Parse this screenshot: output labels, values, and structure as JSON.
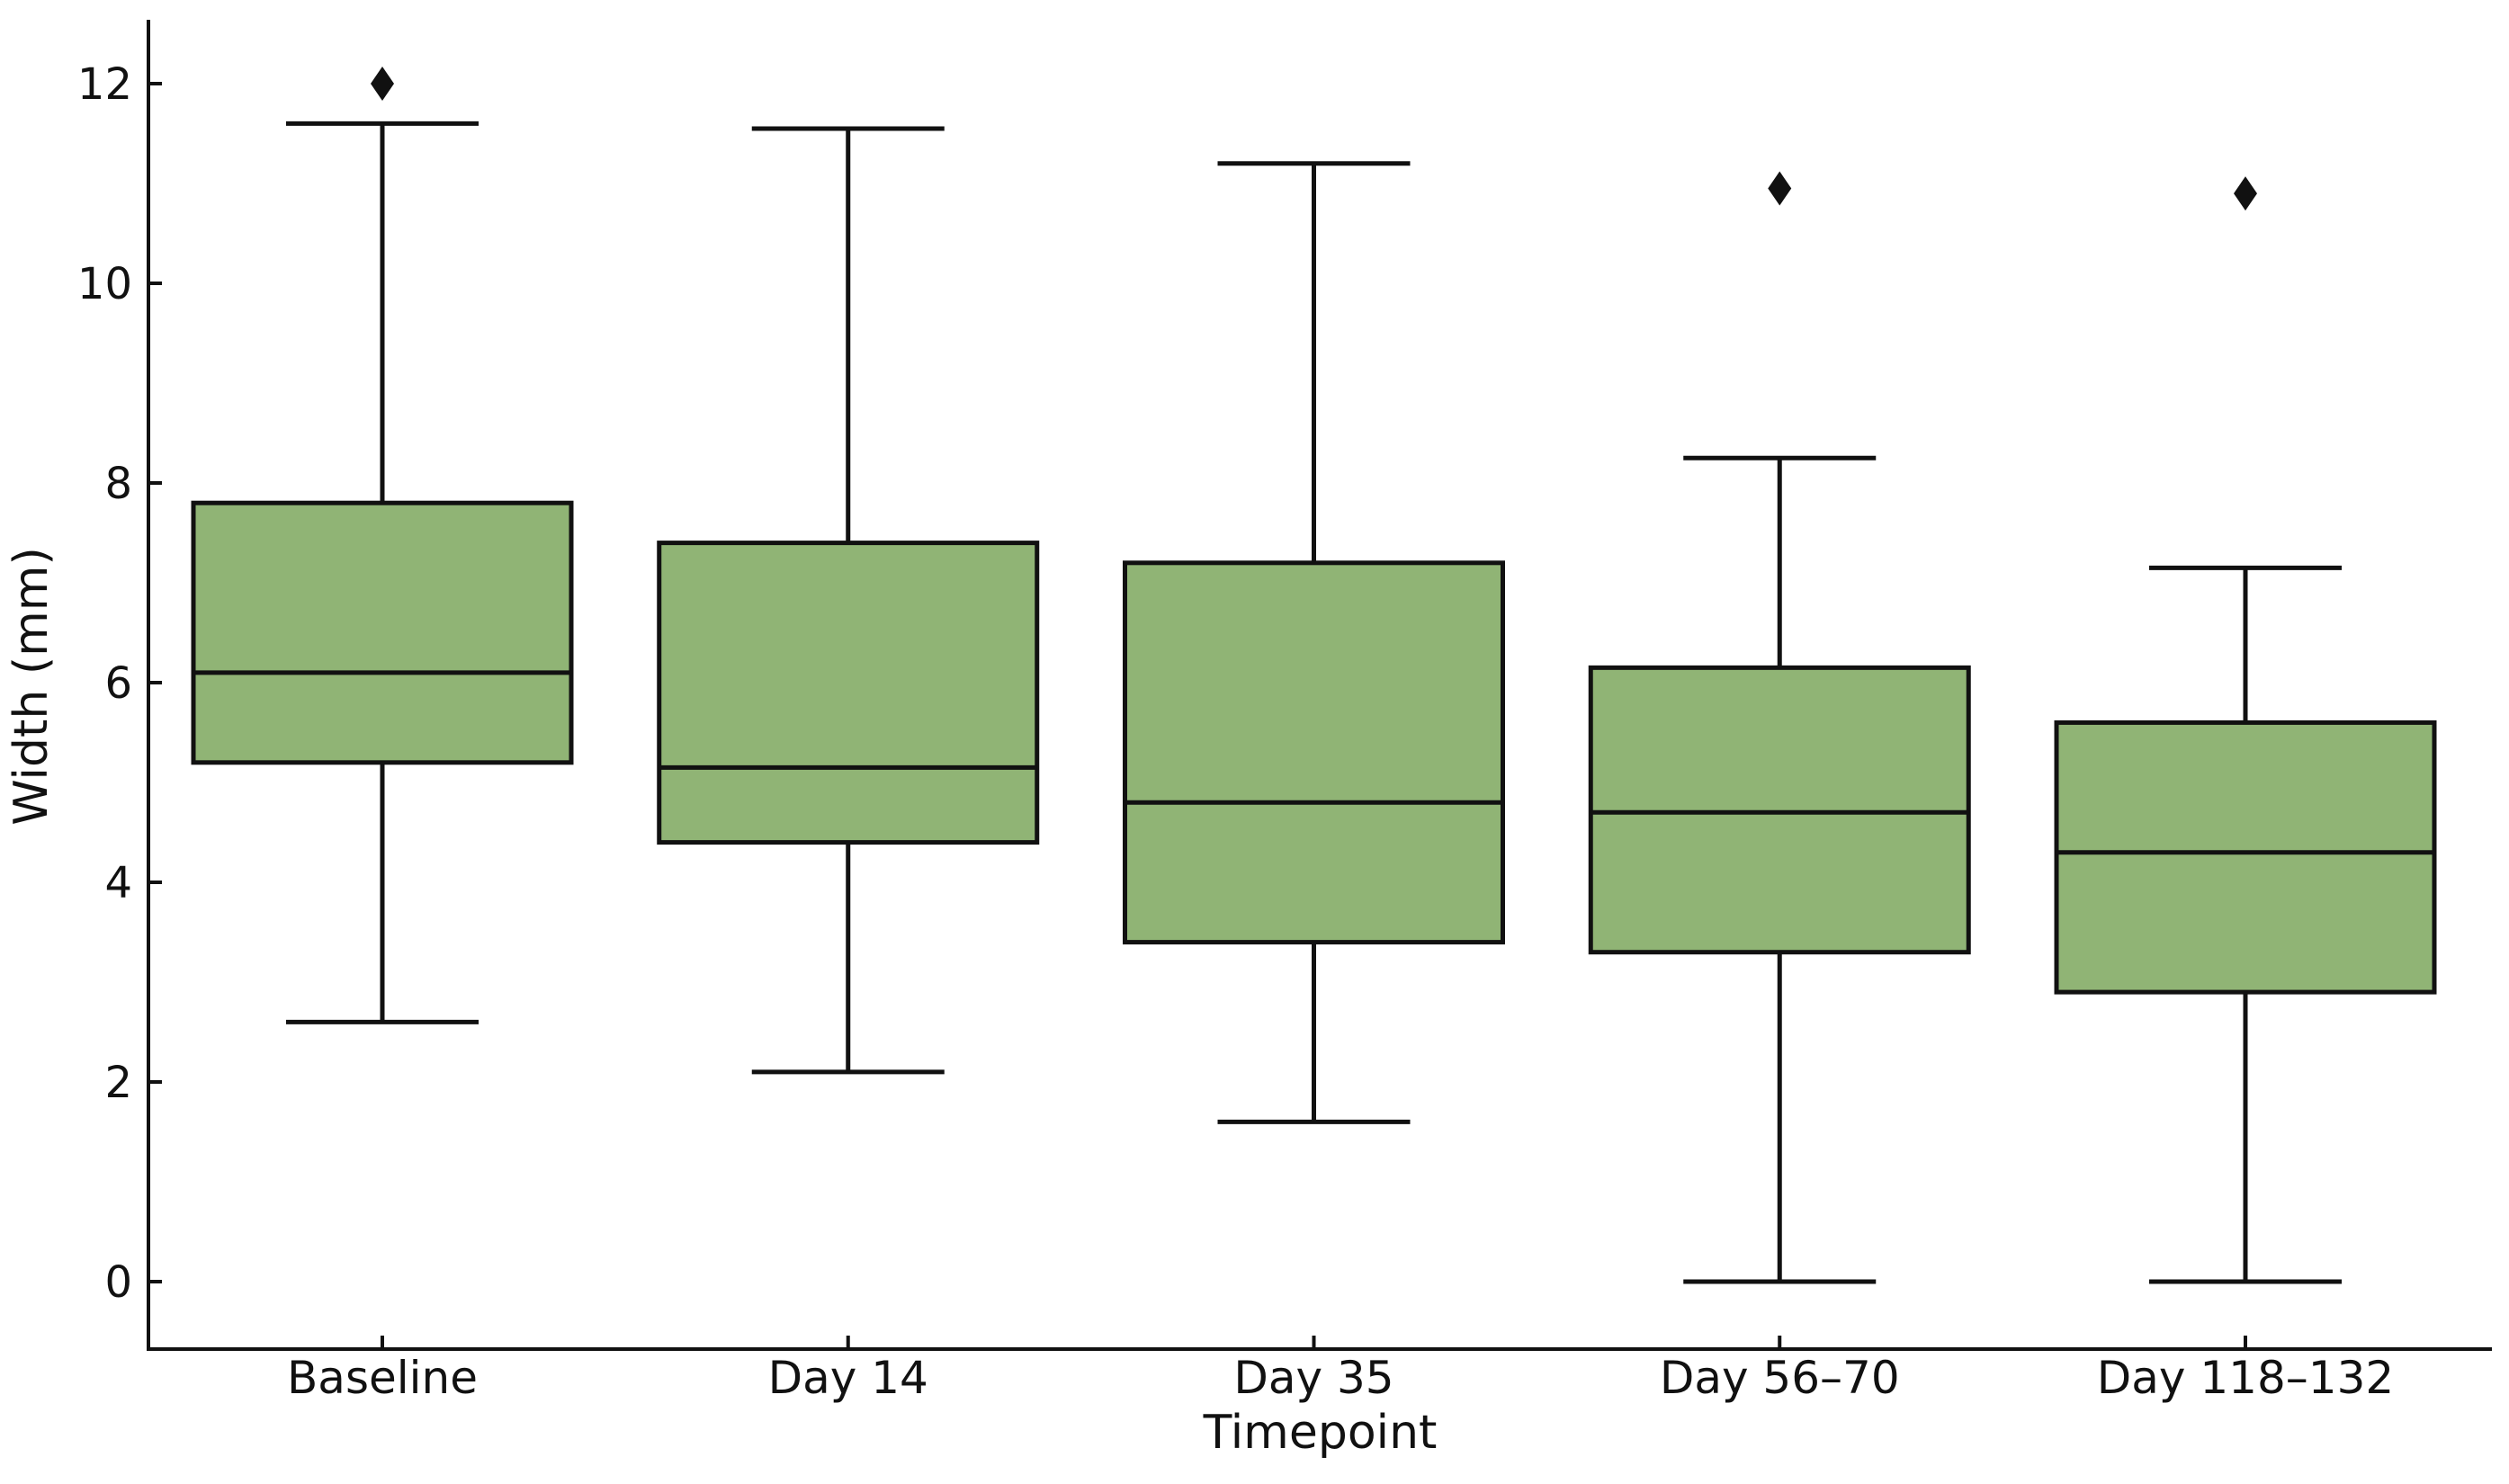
{
  "figure": {
    "title": "",
    "background_color": "#ffffff"
  },
  "chart_data": {
    "type": "box",
    "title": "",
    "xlabel": "Timepoint",
    "ylabel": "Width (mm)",
    "categories": [
      "Baseline",
      "Day 14",
      "Day 35",
      "Day 56–70",
      "Day 118–132"
    ],
    "y_ticks": [
      0,
      2,
      4,
      6,
      8,
      10,
      12
    ],
    "ylim": [
      -0.68,
      12.65
    ],
    "grid": false,
    "legend": null,
    "box_fill_color": "#90B475",
    "line_color": "#111111",
    "outlier_marker": "diamond",
    "boxes": [
      {
        "label": "Baseline",
        "whisker_low": 2.6,
        "q1": 5.2,
        "median": 6.1,
        "q3": 7.8,
        "whisker_high": 11.6,
        "outliers": [
          12.0
        ]
      },
      {
        "label": "Day 14",
        "whisker_low": 2.1,
        "q1": 4.4,
        "median": 5.15,
        "q3": 7.4,
        "whisker_high": 11.55,
        "outliers": []
      },
      {
        "label": "Day 35",
        "whisker_low": 1.6,
        "q1": 3.4,
        "median": 4.8,
        "q3": 7.2,
        "whisker_high": 11.2,
        "outliers": []
      },
      {
        "label": "Day 56–70",
        "whisker_low": 0.0,
        "q1": 3.3,
        "median": 4.7,
        "q3": 6.15,
        "whisker_high": 8.25,
        "outliers": [
          10.95
        ]
      },
      {
        "label": "Day 118–132",
        "whisker_low": 0.0,
        "q1": 2.9,
        "median": 4.3,
        "q3": 5.6,
        "whisker_high": 7.15,
        "outliers": [
          10.9
        ]
      }
    ]
  }
}
